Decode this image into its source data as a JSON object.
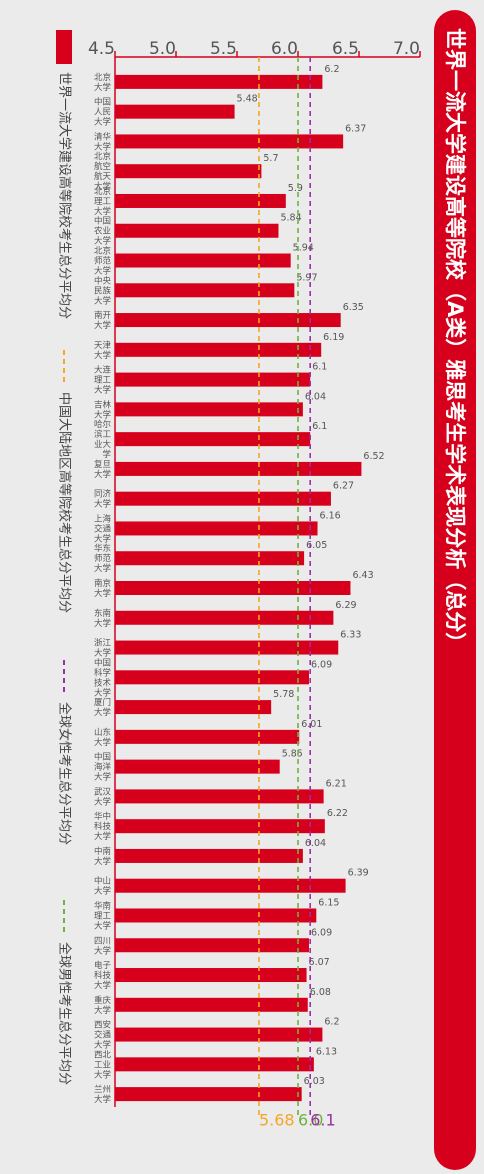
{
  "chart_data": {
    "type": "bar",
    "title": "世界一流大学建设高等院校（A类）雅思考生学术表现分析（总分）",
    "categories": [
      [
        "北京",
        "大学"
      ],
      [
        "中国",
        "人民",
        "大学"
      ],
      [
        "清华",
        "大学"
      ],
      [
        "北京",
        "航空",
        "航天",
        "大学"
      ],
      [
        "北京",
        "理工",
        "大学"
      ],
      [
        "中国",
        "农业",
        "大学"
      ],
      [
        "北京",
        "师范",
        "大学"
      ],
      [
        "中央",
        "民族",
        "大学"
      ],
      [
        "南开",
        "大学"
      ],
      [
        "天津",
        "大学"
      ],
      [
        "大连",
        "理工",
        "大学"
      ],
      [
        "吉林",
        "大学"
      ],
      [
        "哈尔",
        "滨工",
        "业大",
        "学"
      ],
      [
        "复旦",
        "大学"
      ],
      [
        "同济",
        "大学"
      ],
      [
        "上海",
        "交通",
        "大学"
      ],
      [
        "华东",
        "师范",
        "大学"
      ],
      [
        "南京",
        "大学"
      ],
      [
        "东南",
        "大学"
      ],
      [
        "浙江",
        "大学"
      ],
      [
        "中国",
        "科学",
        "技术",
        "大学"
      ],
      [
        "厦门",
        "大学"
      ],
      [
        "山东",
        "大学"
      ],
      [
        "中国",
        "海洋",
        "大学"
      ],
      [
        "武汉",
        "大学"
      ],
      [
        "华中",
        "科技",
        "大学"
      ],
      [
        "中南",
        "大学"
      ],
      [
        "中山",
        "大学"
      ],
      [
        "华南",
        "理工",
        "大学"
      ],
      [
        "四川",
        "大学"
      ],
      [
        "电子",
        "科技",
        "大学"
      ],
      [
        "重庆",
        "大学"
      ],
      [
        "西安",
        "交通",
        "大学"
      ],
      [
        "西北",
        "工业",
        "大学"
      ],
      [
        "兰州",
        "大学"
      ]
    ],
    "values": [
      6.2,
      5.48,
      6.37,
      5.7,
      5.9,
      5.84,
      5.94,
      5.97,
      6.35,
      6.19,
      6.1,
      6.04,
      6.1,
      6.52,
      6.27,
      6.16,
      6.05,
      6.43,
      6.29,
      6.33,
      6.09,
      5.78,
      6.01,
      5.85,
      6.21,
      6.22,
      6.04,
      6.39,
      6.15,
      6.09,
      6.07,
      6.08,
      6.2,
      6.13,
      6.03
    ],
    "value_labels": [
      "6.2",
      "5.48",
      "6.37",
      "5.7",
      "5.9",
      "5.84",
      "5.94",
      "5.97",
      "6.35",
      "6.19",
      "6.1",
      "6.04",
      "6.1",
      "6.52",
      "6.27",
      "6.16",
      "6.05",
      "6.43",
      "6.29",
      "6.33",
      "6.09",
      "5.78",
      "6.01",
      "5.85",
      "6.21",
      "6.22",
      "6.04",
      "6.39",
      "6.15",
      "6.09",
      "6.07",
      "6.08",
      "6.2",
      "6.13",
      "6.03"
    ],
    "ylim": [
      4.5,
      7.0
    ],
    "yticks": [
      4.5,
      5.0,
      5.5,
      6.0,
      6.5,
      7.0
    ],
    "ytick_labels": [
      "4.5",
      "5.0",
      "5.5",
      "6.0",
      "6.5",
      "7.0"
    ],
    "bar_color": "#d6001c",
    "reference_lines": [
      {
        "name": "中国大陆地区高等院校考生总分平均分",
        "value": 5.68,
        "label": "5.68",
        "color": "#f5a623"
      },
      {
        "name": "全球女性考生总分平均分",
        "value": 6.1,
        "label": "6.1",
        "color": "#9b30a8"
      },
      {
        "name": "全球男性考生总分平均分",
        "value": 6.0,
        "label": "6.0",
        "color": "#6fb33e"
      }
    ],
    "legend": {
      "placement": "bottom",
      "items": [
        {
          "label": "世界一流大学建设高等院校考生总分平均分",
          "kind": "bar",
          "color": "#d6001c"
        },
        {
          "label": "中国大陆地区高等院校考生总分平均分",
          "kind": "dashed",
          "color": "#f5a623"
        },
        {
          "label": "全球女性考生总分平均分",
          "kind": "dashed",
          "color": "#9b30a8"
        },
        {
          "label": "全球男性考生总分平均分",
          "kind": "dashed",
          "color": "#6fb33e"
        }
      ]
    },
    "grid": false
  }
}
